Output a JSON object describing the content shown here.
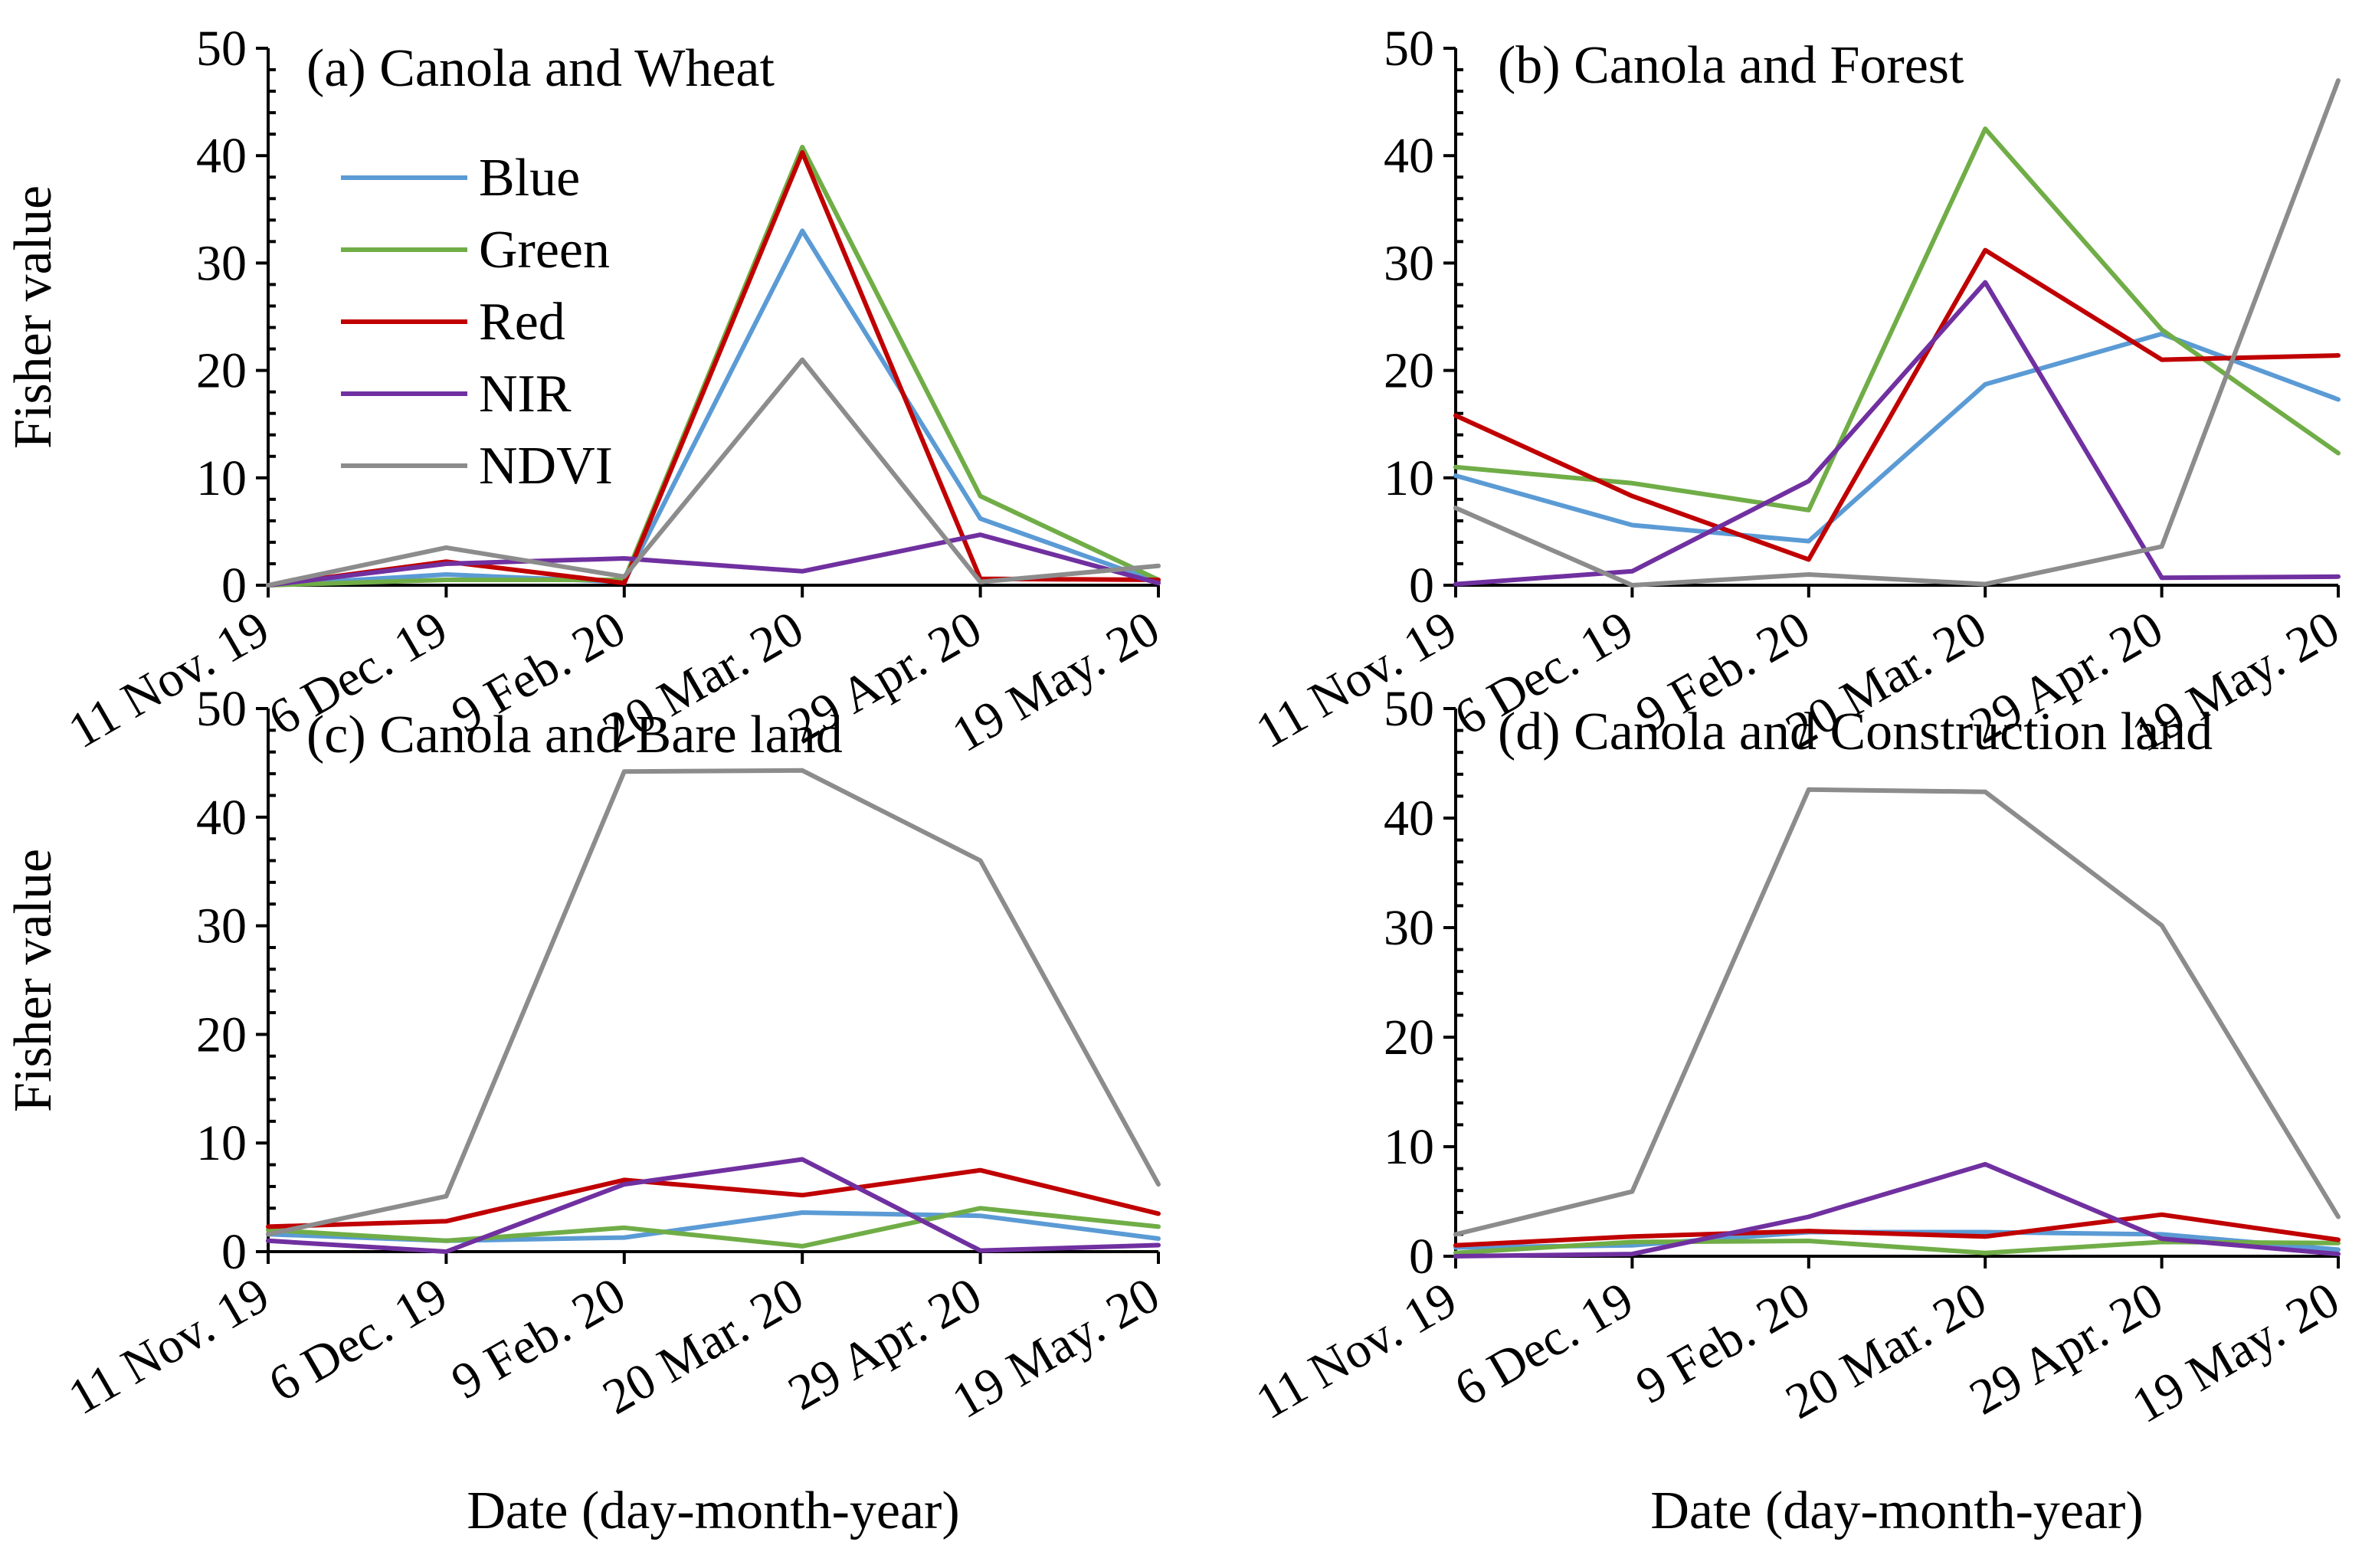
{
  "figure": {
    "x_axis_title": "Date (day-month-year)",
    "y_axis_title": "Fisher value"
  },
  "chart_data": [
    {
      "type": "line",
      "title": "(a) Canola and Wheat",
      "categories": [
        "11 Nov. 19",
        "6 Dec. 19",
        "9 Feb. 20",
        "20 Mar. 20",
        "29 Apr. 20",
        "19 May. 20"
      ],
      "ylim": [
        0,
        50
      ],
      "yticks": [
        0,
        10,
        20,
        30,
        40,
        50
      ],
      "xlabel": "Date (day-month-year)",
      "ylabel": "Fisher value",
      "legend": "inside top-left",
      "series": [
        {
          "name": "Blue",
          "color": "#5B9BD5",
          "values": [
            0,
            1.0,
            0.3,
            33,
            6.2,
            0.3
          ]
        },
        {
          "name": "Green",
          "color": "#70AD47",
          "values": [
            0,
            0.5,
            0.5,
            40.8,
            8.3,
            0.5
          ]
        },
        {
          "name": "Red",
          "color": "#C00000",
          "values": [
            0,
            2.2,
            0.2,
            40.3,
            0.6,
            0.5
          ]
        },
        {
          "name": "NIR",
          "color": "#7030A0",
          "values": [
            0,
            2.0,
            2.5,
            1.3,
            4.7,
            0.2
          ]
        },
        {
          "name": "NDVI",
          "color": "#8C8C8C",
          "values": [
            0,
            3.5,
            0.8,
            21,
            0.3,
            1.8
          ]
        }
      ]
    },
    {
      "type": "line",
      "title": "(b) Canola and Forest",
      "categories": [
        "11 Nov. 19",
        "6 Dec. 19",
        "9 Feb. 20",
        "20 Mar. 20",
        "29 Apr. 20",
        "19 May. 20"
      ],
      "ylim": [
        0,
        50
      ],
      "yticks": [
        0,
        10,
        20,
        30,
        40,
        50
      ],
      "xlabel": "Date (day-month-year)",
      "ylabel": "",
      "series": [
        {
          "name": "Blue",
          "color": "#5B9BD5",
          "values": [
            10.2,
            5.6,
            4.1,
            18.7,
            23.4,
            17.3
          ]
        },
        {
          "name": "Green",
          "color": "#70AD47",
          "values": [
            11,
            9.5,
            7,
            42.5,
            23.8,
            12.3
          ]
        },
        {
          "name": "Red",
          "color": "#C00000",
          "values": [
            15.8,
            8.3,
            2.4,
            31.2,
            21,
            21.4
          ]
        },
        {
          "name": "NIR",
          "color": "#7030A0",
          "values": [
            0.1,
            1.3,
            9.7,
            28.2,
            0.7,
            0.8
          ]
        },
        {
          "name": "NDVI",
          "color": "#8C8C8C",
          "values": [
            7.2,
            0,
            1,
            0.1,
            3.6,
            47
          ]
        }
      ]
    },
    {
      "type": "line",
      "title": "(c) Canola and Bare land",
      "categories": [
        "11 Nov. 19",
        "6 Dec. 19",
        "9 Feb. 20",
        "20 Mar. 20",
        "29 Apr. 20",
        "19 May. 20"
      ],
      "ylim": [
        0,
        50
      ],
      "yticks": [
        0,
        10,
        20,
        30,
        40,
        50
      ],
      "xlabel": "Date (day-month-year)",
      "ylabel": "Fisher value",
      "series": [
        {
          "name": "Blue",
          "color": "#5B9BD5",
          "values": [
            1.6,
            1.0,
            1.3,
            3.6,
            3.3,
            1.2
          ]
        },
        {
          "name": "Green",
          "color": "#70AD47",
          "values": [
            2.0,
            1.0,
            2.2,
            0.5,
            4.0,
            2.3
          ]
        },
        {
          "name": "Red",
          "color": "#C00000",
          "values": [
            2.3,
            2.8,
            6.6,
            5.2,
            7.5,
            3.5
          ]
        },
        {
          "name": "NIR",
          "color": "#7030A0",
          "values": [
            1.0,
            0,
            6.2,
            8.5,
            0.1,
            0.6
          ]
        },
        {
          "name": "NDVI",
          "color": "#8C8C8C",
          "values": [
            1.6,
            5.1,
            44.2,
            44.3,
            36,
            6.2
          ]
        }
      ]
    },
    {
      "type": "line",
      "title": "(d) Canola and Construction land",
      "categories": [
        "11 Nov. 19",
        "6 Dec. 19",
        "9 Feb. 20",
        "20 Mar. 20",
        "29 Apr. 20",
        "19 May. 20"
      ],
      "ylim": [
        0,
        50
      ],
      "yticks": [
        0,
        10,
        20,
        30,
        40,
        50
      ],
      "xlabel": "Date (day-month-year)",
      "ylabel": "",
      "series": [
        {
          "name": "Blue",
          "color": "#5B9BD5",
          "values": [
            0.8,
            1.0,
            2.2,
            2.2,
            2.0,
            0.6
          ]
        },
        {
          "name": "Green",
          "color": "#70AD47",
          "values": [
            0.3,
            1.3,
            1.4,
            0.3,
            1.3,
            1.2
          ]
        },
        {
          "name": "Red",
          "color": "#C00000",
          "values": [
            1.0,
            1.8,
            2.3,
            1.8,
            3.8,
            1.5
          ]
        },
        {
          "name": "NIR",
          "color": "#7030A0",
          "values": [
            0,
            0.2,
            3.6,
            8.4,
            1.6,
            0.2
          ]
        },
        {
          "name": "NDVI",
          "color": "#8C8C8C",
          "values": [
            2.0,
            5.9,
            42.6,
            42.4,
            30.2,
            3.6
          ]
        }
      ]
    }
  ]
}
